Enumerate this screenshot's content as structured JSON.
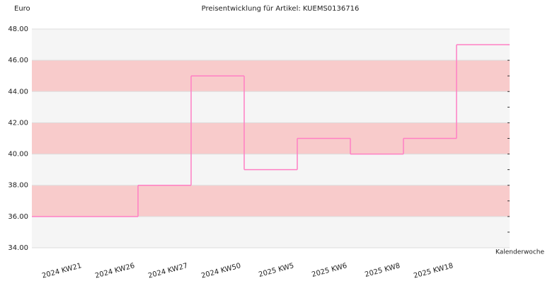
{
  "chart_data": {
    "type": "step",
    "title": "Preisentwicklung für Artikel: KUEMS0136716",
    "y_label": "Euro",
    "x_label": "Kalenderwoche",
    "categories": [
      "2024 KW21",
      "2024 KW26",
      "2024 KW27",
      "2024 KW50",
      "2025 KW5",
      "2025 KW6",
      "2025 KW8",
      "2025 KW18"
    ],
    "values": [
      36,
      38,
      45,
      39,
      41,
      40,
      41,
      47
    ],
    "color": "#ff7fc4",
    "ylim": [
      34,
      48
    ],
    "yticks": [
      {
        "value": 34,
        "label": "34.00"
      },
      {
        "value": 36,
        "label": "36.00"
      },
      {
        "value": 38,
        "label": "38.00"
      },
      {
        "value": 40,
        "label": "40.00"
      },
      {
        "value": 42,
        "label": "42.00"
      },
      {
        "value": 44,
        "label": "44.00"
      },
      {
        "value": 46,
        "label": "46.00"
      },
      {
        "value": 48,
        "label": "48.00"
      }
    ],
    "band_colors": [
      "#f5f5f5",
      "#f8cbcb"
    ]
  }
}
